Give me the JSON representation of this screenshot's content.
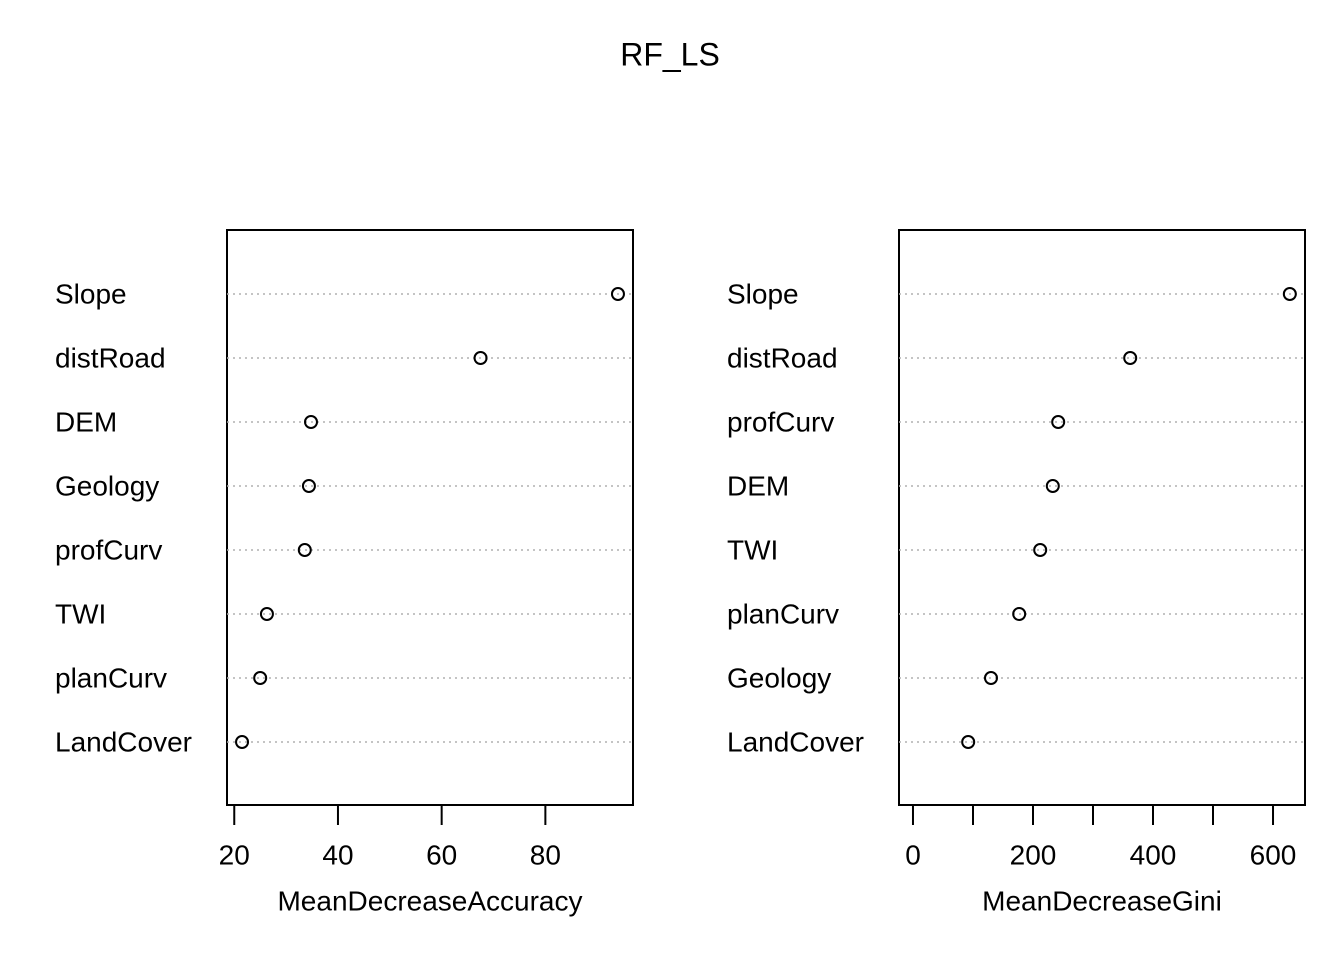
{
  "title": "RF_LS",
  "chart_data": [
    {
      "type": "dot",
      "xlabel": "MeanDecreaseAccuracy",
      "categories": [
        "Slope",
        "distRoad",
        "DEM",
        "Geology",
        "profCurv",
        "TWI",
        "planCurv",
        "LandCover"
      ],
      "values": [
        94.0,
        67.5,
        34.8,
        34.4,
        33.6,
        26.3,
        25.0,
        21.5
      ],
      "xlim": [
        18.6,
        96.9
      ],
      "xticks": [
        20,
        40,
        60,
        80
      ],
      "grid": true,
      "color": "#000000"
    },
    {
      "type": "dot",
      "xlabel": "MeanDecreaseGini",
      "categories": [
        "Slope",
        "distRoad",
        "profCurv",
        "DEM",
        "TWI",
        "planCurv",
        "Geology",
        "LandCover"
      ],
      "values": [
        628,
        362,
        242,
        233,
        212,
        177,
        130,
        92
      ],
      "xlim": [
        -23.3,
        653.3
      ],
      "xticks": [
        0,
        200,
        400,
        600
      ],
      "xticks_unlabeled": [
        100,
        300,
        500
      ],
      "grid": true,
      "color": "#000000"
    }
  ]
}
